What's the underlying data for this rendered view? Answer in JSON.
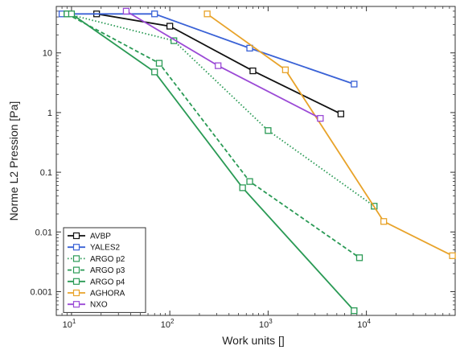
{
  "chart_data": {
    "type": "line",
    "xlabel": "Work units []",
    "ylabel": "Norme L2 Pression [Pa]",
    "xscale": "log",
    "yscale": "log",
    "xlim": [
      7,
      80000
    ],
    "ylim": [
      0.0004,
      60
    ],
    "grid": false,
    "legend_position": "bottom-left",
    "x_ticks": [
      {
        "value": 10,
        "label": "10",
        "sup": "1"
      },
      {
        "value": 100,
        "label": "10",
        "sup": "2"
      },
      {
        "value": 1000,
        "label": "10",
        "sup": "3"
      },
      {
        "value": 10000,
        "label": "10",
        "sup": "4"
      }
    ],
    "y_ticks": [
      {
        "value": 10,
        "label": "10"
      },
      {
        "value": 1,
        "label": "1"
      },
      {
        "value": 0.1,
        "label": "0.1"
      },
      {
        "value": 0.01,
        "label": "0.01"
      },
      {
        "value": 0.001,
        "label": "0.001"
      }
    ],
    "series": [
      {
        "name": "AVBP",
        "color": "#111111",
        "dash": "solid",
        "x": [
          18,
          100,
          700,
          5500
        ],
        "y": [
          45,
          28,
          5,
          0.95
        ]
      },
      {
        "name": "YALES2",
        "color": "#3a62d6",
        "dash": "solid",
        "x": [
          8,
          70,
          650,
          7500
        ],
        "y": [
          45,
          45,
          12,
          3
        ]
      },
      {
        "name": "ARGO p2",
        "color": "#2a9a55",
        "dash": "dotted",
        "x": [
          9,
          110,
          1000,
          12000
        ],
        "y": [
          45,
          16,
          0.5,
          0.027
        ]
      },
      {
        "name": "ARGO p3",
        "color": "#2a9a55",
        "dash": "dashed",
        "x": [
          9,
          78,
          650,
          8500
        ],
        "y": [
          45,
          6.7,
          0.07,
          0.0037
        ]
      },
      {
        "name": "ARGO p4",
        "color": "#2a9a55",
        "dash": "solid",
        "x": [
          10,
          70,
          550,
          7500
        ],
        "y": [
          45,
          4.8,
          0.055,
          0.00048
        ]
      },
      {
        "name": "AGHORA",
        "color": "#e8a32a",
        "dash": "solid",
        "x": [
          240,
          1500,
          15000,
          75000
        ],
        "y": [
          45,
          5.2,
          0.015,
          0.004
        ]
      },
      {
        "name": "NXO",
        "color": "#9b4ad6",
        "dash": "solid",
        "x": [
          36,
          310,
          3400
        ],
        "y": [
          50,
          6.1,
          0.8
        ]
      }
    ]
  }
}
